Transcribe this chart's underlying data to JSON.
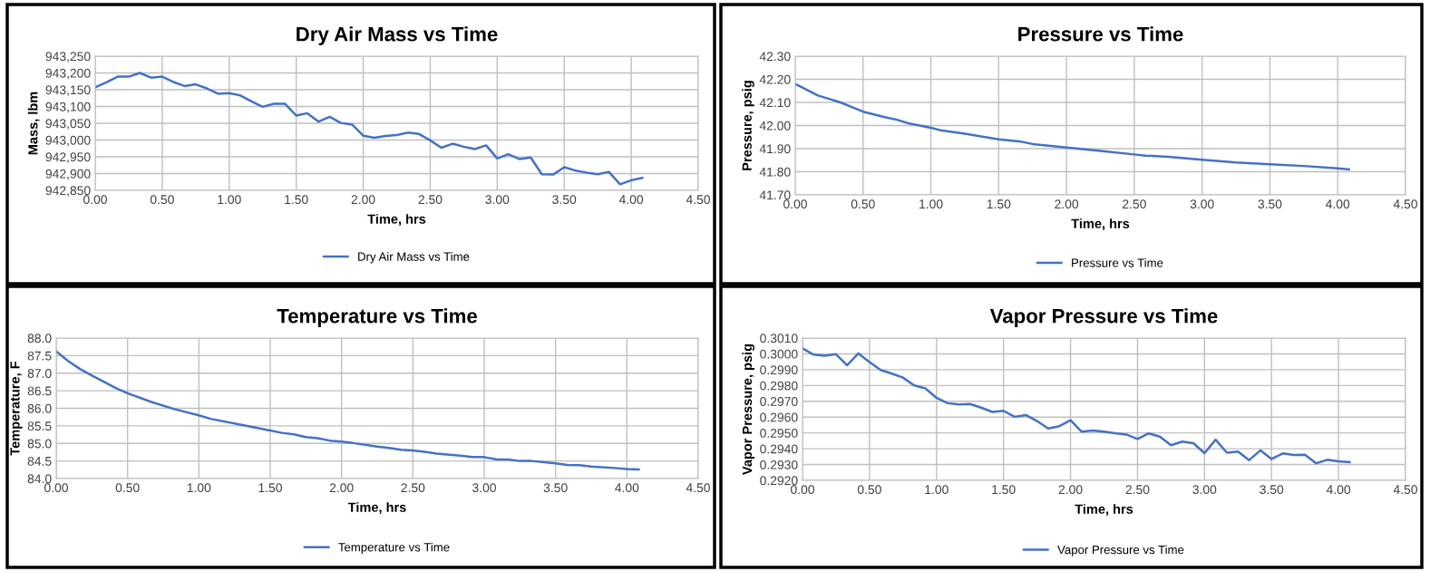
{
  "chart_data": [
    {
      "type": "line",
      "title": "Dry Air Mass vs Time",
      "xlabel": "Time, hrs",
      "ylabel": "Mass, lbm",
      "x": [
        0,
        0.083,
        0.167,
        0.25,
        0.333,
        0.417,
        0.5,
        0.583,
        0.667,
        0.75,
        0.833,
        0.917,
        1.0,
        1.083,
        1.167,
        1.25,
        1.333,
        1.417,
        1.5,
        1.583,
        1.667,
        1.75,
        1.833,
        1.917,
        2.0,
        2.083,
        2.167,
        2.25,
        2.333,
        2.417,
        2.5,
        2.583,
        2.667,
        2.75,
        2.833,
        2.917,
        3.0,
        3.083,
        3.167,
        3.25,
        3.333,
        3.417,
        3.5,
        3.583,
        3.667,
        3.75,
        3.833,
        3.917,
        4.0,
        4.083
      ],
      "series": [
        {
          "name": "Dry Air Mass vs Time",
          "color": "#4472c4",
          "values": [
            943157,
            943172,
            943189,
            943189,
            943200,
            943186,
            943189,
            943173,
            943161,
            943166,
            943154,
            943138,
            943140,
            943133,
            943115,
            943099,
            943108,
            943108,
            943073,
            943080,
            943055,
            943069,
            943051,
            943046,
            943013,
            943007,
            943012,
            943015,
            943022,
            943018,
            942999,
            942977,
            942989,
            942980,
            942973,
            942984,
            942945,
            942958,
            942943,
            942948,
            942898,
            942897,
            942919,
            942909,
            942903,
            942898,
            942905,
            942868,
            942880,
            942887
          ]
        }
      ],
      "xlim": [
        0,
        4.5
      ],
      "xticks": [
        {
          "value": 0,
          "label": "0.00"
        },
        {
          "value": 0.5,
          "label": "0.50"
        },
        {
          "value": 1,
          "label": "1.00"
        },
        {
          "value": 1.5,
          "label": "1.50"
        },
        {
          "value": 2,
          "label": "2.00"
        },
        {
          "value": 2.5,
          "label": "2.50"
        },
        {
          "value": 3,
          "label": "3.00"
        },
        {
          "value": 3.5,
          "label": "3.50"
        },
        {
          "value": 4,
          "label": "4.00"
        },
        {
          "value": 4.5,
          "label": "4.50"
        }
      ],
      "ylim": [
        942850,
        943250
      ],
      "yticks": [
        {
          "value": 942850,
          "label": "942,850"
        },
        {
          "value": 942900,
          "label": "942,900"
        },
        {
          "value": 942950,
          "label": "942,950"
        },
        {
          "value": 943000,
          "label": "943,000"
        },
        {
          "value": 943050,
          "label": "943,050"
        },
        {
          "value": 943100,
          "label": "943,100"
        },
        {
          "value": 943150,
          "label": "943,150"
        },
        {
          "value": 943200,
          "label": "943,200"
        },
        {
          "value": 943250,
          "label": "943,250"
        }
      ],
      "grid": true,
      "legend": "bottom",
      "marker": "none",
      "line_style": "solid"
    },
    {
      "type": "line",
      "title": "Pressure vs Time",
      "xlabel": "Time, hrs",
      "ylabel": "Pressure, psig",
      "x": [
        0,
        0.083,
        0.167,
        0.25,
        0.333,
        0.417,
        0.5,
        0.667,
        0.75,
        0.833,
        1.0,
        1.083,
        1.25,
        1.5,
        1.667,
        1.75,
        2.0,
        2.25,
        2.5,
        2.583,
        2.75,
        3.0,
        3.25,
        3.5,
        3.75,
        4.0,
        4.083
      ],
      "series": [
        {
          "name": "Pressure vs Time",
          "color": "#4472c4",
          "values": [
            42.18,
            42.155,
            42.13,
            42.115,
            42.1,
            42.08,
            42.06,
            42.035,
            42.025,
            42.01,
            41.99,
            41.978,
            41.965,
            41.94,
            41.93,
            41.92,
            41.905,
            41.89,
            41.875,
            41.87,
            41.865,
            41.852,
            41.84,
            41.832,
            41.825,
            41.815,
            41.81
          ]
        }
      ],
      "xlim": [
        0,
        4.5
      ],
      "xticks": [
        {
          "value": 0,
          "label": "0.00"
        },
        {
          "value": 0.5,
          "label": "0.50"
        },
        {
          "value": 1,
          "label": "1.00"
        },
        {
          "value": 1.5,
          "label": "1.50"
        },
        {
          "value": 2,
          "label": "2.00"
        },
        {
          "value": 2.5,
          "label": "2.50"
        },
        {
          "value": 3,
          "label": "3.00"
        },
        {
          "value": 3.5,
          "label": "3.50"
        },
        {
          "value": 4,
          "label": "4.00"
        },
        {
          "value": 4.5,
          "label": "4.50"
        }
      ],
      "ylim": [
        41.7,
        42.3
      ],
      "yticks": [
        {
          "value": 41.7,
          "label": "41.70"
        },
        {
          "value": 41.8,
          "label": "41.80"
        },
        {
          "value": 41.9,
          "label": "41.90"
        },
        {
          "value": 42.0,
          "label": "42.00"
        },
        {
          "value": 42.1,
          "label": "42.10"
        },
        {
          "value": 42.2,
          "label": "42.20"
        },
        {
          "value": 42.3,
          "label": "42.30"
        }
      ],
      "grid": true,
      "legend": "bottom",
      "marker": "none",
      "line_style": "solid"
    },
    {
      "type": "line",
      "title": "Temperature vs Time",
      "xlabel": "Time, hrs",
      "ylabel": "Temperature, F",
      "x": [
        0,
        0.083,
        0.167,
        0.25,
        0.333,
        0.417,
        0.5,
        0.667,
        0.833,
        1.0,
        1.083,
        1.25,
        1.5,
        1.583,
        1.667,
        1.75,
        1.833,
        1.917,
        2.0,
        2.083,
        2.25,
        2.333,
        2.417,
        2.5,
        2.583,
        2.667,
        2.833,
        2.917,
        3.0,
        3.083,
        3.167,
        3.25,
        3.333,
        3.5,
        3.583,
        3.667,
        3.75,
        3.917,
        4.0,
        4.083
      ],
      "series": [
        {
          "name": "Temperature vs Time",
          "color": "#4472c4",
          "values": [
            87.62,
            87.35,
            87.12,
            86.93,
            86.76,
            86.58,
            86.43,
            86.18,
            85.97,
            85.8,
            85.7,
            85.57,
            85.37,
            85.3,
            85.26,
            85.18,
            85.15,
            85.08,
            85.05,
            85.01,
            84.91,
            84.87,
            84.82,
            84.8,
            84.76,
            84.71,
            84.65,
            84.61,
            84.61,
            84.55,
            84.54,
            84.5,
            84.5,
            84.43,
            84.39,
            84.38,
            84.34,
            84.3,
            84.27,
            84.26
          ]
        }
      ],
      "xlim": [
        0,
        4.5
      ],
      "xticks": [
        {
          "value": 0,
          "label": "0.00"
        },
        {
          "value": 0.5,
          "label": "0.50"
        },
        {
          "value": 1,
          "label": "1.00"
        },
        {
          "value": 1.5,
          "label": "1.50"
        },
        {
          "value": 2,
          "label": "2.00"
        },
        {
          "value": 2.5,
          "label": "2.50"
        },
        {
          "value": 3,
          "label": "3.00"
        },
        {
          "value": 3.5,
          "label": "3.50"
        },
        {
          "value": 4,
          "label": "4.00"
        },
        {
          "value": 4.5,
          "label": "4.50"
        }
      ],
      "ylim": [
        84,
        88
      ],
      "yticks": [
        {
          "value": 84,
          "label": "84.0"
        },
        84.5,
        {
          "value": 85,
          "label": "85.0"
        },
        85.5,
        {
          "value": 86,
          "label": "86.0"
        },
        86.5,
        {
          "value": 87,
          "label": "87.0"
        },
        87.5,
        {
          "value": 88,
          "label": "88.0"
        }
      ],
      "grid": true,
      "legend": "bottom",
      "marker": "none",
      "line_style": "solid"
    },
    {
      "type": "line",
      "title": "Vapor Pressure vs Time",
      "xlabel": "Time, hrs",
      "ylabel": "Vapor Pressure, psig",
      "x": [
        0,
        0.083,
        0.167,
        0.25,
        0.333,
        0.417,
        0.5,
        0.583,
        0.667,
        0.75,
        0.833,
        0.917,
        1.0,
        1.083,
        1.167,
        1.25,
        1.333,
        1.417,
        1.5,
        1.583,
        1.667,
        1.75,
        1.833,
        1.917,
        2.0,
        2.083,
        2.167,
        2.25,
        2.333,
        2.417,
        2.5,
        2.583,
        2.667,
        2.75,
        2.833,
        2.917,
        3.0,
        3.083,
        3.167,
        3.25,
        3.333,
        3.417,
        3.5,
        3.583,
        3.667,
        3.75,
        3.833,
        3.917,
        4.0,
        4.083
      ],
      "series": [
        {
          "name": "Vapor Pressure vs Time",
          "color": "#4472c4",
          "values": [
            0.30035,
            0.29995,
            0.29988,
            0.29998,
            0.29928,
            0.30003,
            0.29948,
            0.29898,
            0.29875,
            0.2985,
            0.298,
            0.29782,
            0.29722,
            0.29688,
            0.2968,
            0.29683,
            0.2966,
            0.29633,
            0.2964,
            0.29602,
            0.29613,
            0.29575,
            0.29528,
            0.29543,
            0.2958,
            0.29508,
            0.29515,
            0.29508,
            0.29498,
            0.2949,
            0.29462,
            0.29497,
            0.29477,
            0.29422,
            0.29445,
            0.29435,
            0.29372,
            0.29457,
            0.29375,
            0.29382,
            0.29328,
            0.2939,
            0.29335,
            0.2937,
            0.2936,
            0.29362,
            0.29308,
            0.2933,
            0.2932,
            0.29315
          ]
        }
      ],
      "xlim": [
        0,
        4.5
      ],
      "xticks": [
        {
          "value": 0,
          "label": "0.00"
        },
        {
          "value": 0.5,
          "label": "0.50"
        },
        {
          "value": 1,
          "label": "1.00"
        },
        {
          "value": 1.5,
          "label": "1.50"
        },
        {
          "value": 2,
          "label": "2.00"
        },
        {
          "value": 2.5,
          "label": "2.50"
        },
        {
          "value": 3,
          "label": "3.00"
        },
        {
          "value": 3.5,
          "label": "3.50"
        },
        {
          "value": 4,
          "label": "4.00"
        },
        {
          "value": 4.5,
          "label": "4.50"
        }
      ],
      "ylim": [
        0.292,
        0.301
      ],
      "yticks": [
        {
          "value": 0.292,
          "label": "0.2920"
        },
        {
          "value": 0.293,
          "label": "0.2930"
        },
        {
          "value": 0.294,
          "label": "0.2940"
        },
        {
          "value": 0.295,
          "label": "0.2950"
        },
        {
          "value": 0.296,
          "label": "0.2960"
        },
        {
          "value": 0.297,
          "label": "0.2970"
        },
        {
          "value": 0.298,
          "label": "0.2980"
        },
        {
          "value": 0.299,
          "label": "0.2990"
        },
        {
          "value": 0.3,
          "label": "0.3000"
        },
        {
          "value": 0.301,
          "label": "0.3010"
        }
      ],
      "grid": true,
      "legend": "bottom",
      "marker": "none",
      "line_style": "solid"
    }
  ]
}
